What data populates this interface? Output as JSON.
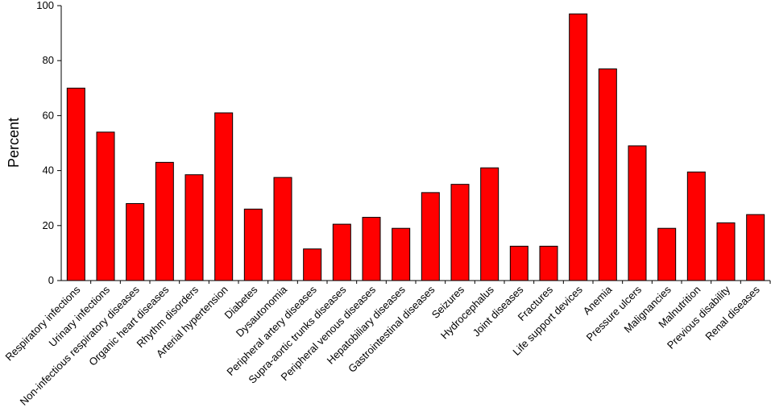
{
  "chart_data": {
    "type": "bar",
    "title": "",
    "xlabel": "",
    "ylabel": "Percent",
    "ylim": [
      0,
      100
    ],
    "yticks": [
      0,
      20,
      40,
      60,
      80,
      100
    ],
    "grid": false,
    "bar_color": "#ff0000",
    "bar_edge_color": "#000000",
    "categories": [
      "Respiratory infections",
      "Urinary infections",
      "Non-infectious respiratory diseases",
      "Organic heart diseases",
      "Rhythm disorders",
      "Arterial hypertension",
      "Diabetes",
      "Dysautonomia",
      "Peripheral artery diseases",
      "Supra-aortic trunks diseases",
      "Peripheral venous diseases",
      "Hepatobiliary diseases",
      "Gastrointestinal diseases",
      "Seizures",
      "Hydrocephalus",
      "Joint diseases",
      "Fractures",
      "Life support devices",
      "Anemia",
      "Pressure ulcers",
      "Malignancies",
      "Malnutrition",
      "Previous disability",
      "Renal diseases"
    ],
    "values": [
      70,
      54,
      28,
      43,
      38.5,
      61,
      26,
      37.5,
      11.5,
      20.5,
      23,
      19,
      32,
      35,
      41,
      12.5,
      12.5,
      97,
      77,
      49,
      19,
      39.5,
      21,
      24
    ]
  }
}
